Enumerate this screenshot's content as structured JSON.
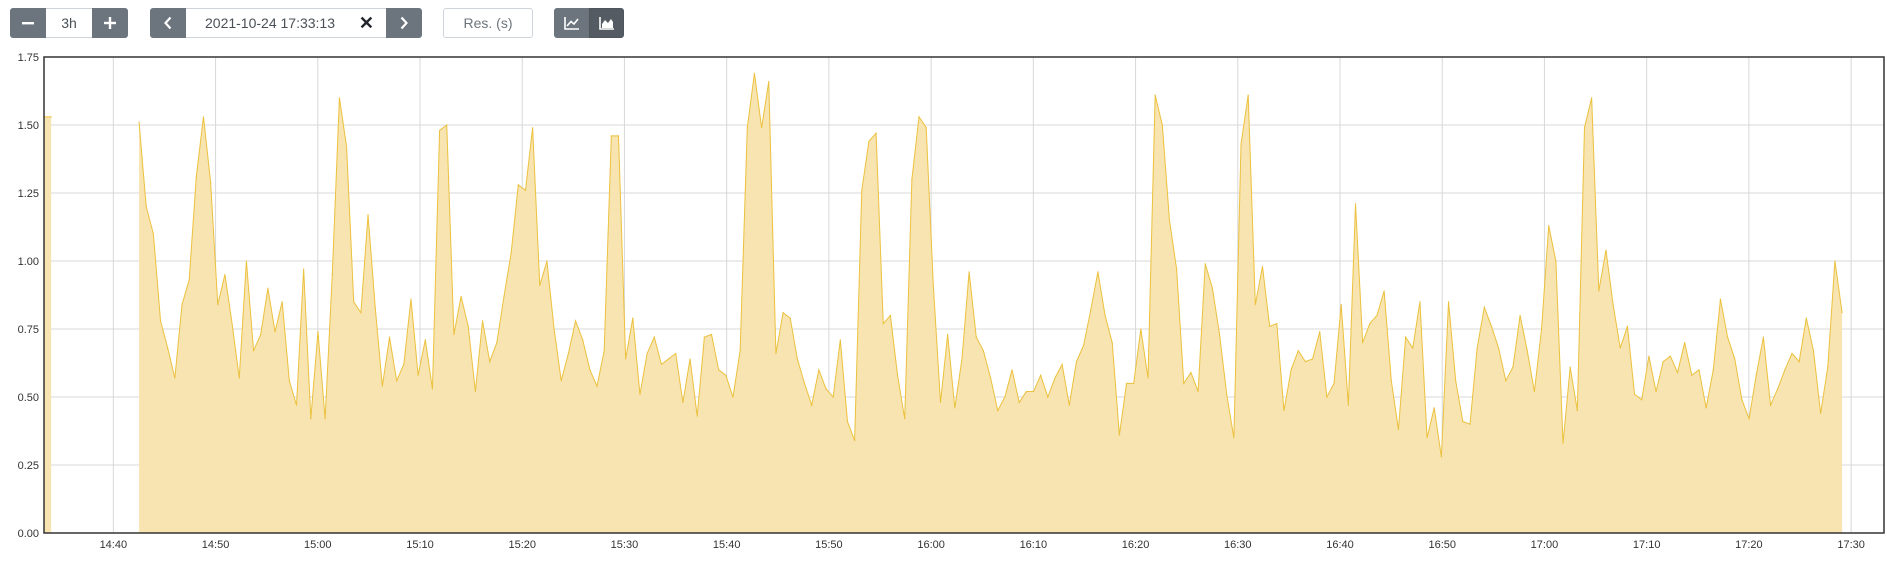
{
  "controls": {
    "range": {
      "minus_icon": "minus-icon",
      "value": "3h",
      "plus_icon": "plus-icon"
    },
    "end_time": {
      "prev_icon": "chevron-left-icon",
      "value": "2021-10-24 17:33:13",
      "clear_label": "✕",
      "next_icon": "chevron-right-icon"
    },
    "resolution": {
      "placeholder": "Res. (s)"
    },
    "chart_mode": {
      "lines_icon": "line-chart-icon",
      "stacked_icon": "area-chart-icon",
      "active": "stacked"
    }
  },
  "colors": {
    "series_fill": "#f7e4b0",
    "series_stroke": "#ebc13e",
    "grid": "#d8d8d8",
    "frame": "#333333"
  },
  "chart_data": {
    "type": "area",
    "stacked": true,
    "grid": true,
    "x_start": "14:33:13",
    "x_end": "17:33:13",
    "step_seconds": 42,
    "x_ticks": [
      "14:40",
      "14:50",
      "15:00",
      "15:10",
      "15:20",
      "15:30",
      "15:40",
      "15:50",
      "16:00",
      "16:10",
      "16:20",
      "16:30",
      "16:40",
      "16:50",
      "17:00",
      "17:10",
      "17:20",
      "17:30"
    ],
    "y_ticks": [
      "0.00",
      "0.25",
      "0.50",
      "0.75",
      "1.00",
      "1.25",
      "1.50",
      "1.75"
    ],
    "ylim": [
      0,
      1.75
    ],
    "series": [
      {
        "segments": [
          {
            "start": "14:33:13",
            "values": [
              1.53,
              1.53
            ]
          },
          {
            "start": "14:42:31",
            "values": [
              1.51,
              1.2,
              1.1,
              0.78,
              0.68,
              0.57,
              0.84,
              0.93,
              1.31,
              1.53,
              1.29,
              0.84,
              0.95,
              0.77,
              0.57,
              1.0,
              0.67,
              0.73,
              0.9,
              0.74,
              0.85,
              0.56,
              0.47,
              0.97,
              0.42,
              0.74,
              0.42,
              0.95,
              1.6,
              1.42,
              0.85,
              0.81,
              1.17,
              0.83,
              0.54,
              0.72,
              0.56,
              0.62,
              0.86,
              0.58,
              0.71,
              0.53,
              1.48,
              1.5,
              0.73,
              0.87,
              0.76,
              0.52,
              0.78,
              0.63,
              0.7,
              0.87,
              1.03,
              1.28,
              1.26,
              1.49,
              0.91,
              1.0,
              0.75,
              0.56,
              0.66,
              0.78,
              0.71,
              0.6,
              0.54,
              0.67,
              1.46,
              1.46,
              0.64,
              0.79,
              0.51,
              0.66,
              0.72,
              0.62,
              0.64,
              0.66,
              0.48,
              0.64,
              0.43,
              0.72,
              0.73,
              0.6,
              0.58,
              0.5,
              0.67,
              1.49,
              1.69,
              1.49,
              1.66,
              0.66,
              0.81,
              0.79,
              0.64,
              0.55,
              0.47,
              0.6,
              0.53,
              0.5,
              0.71,
              0.41,
              0.34,
              1.26,
              1.44,
              1.47,
              0.77,
              0.8,
              0.58,
              0.42,
              1.3,
              1.53,
              1.49,
              0.91,
              0.48,
              0.73,
              0.46,
              0.64,
              0.96,
              0.72,
              0.67,
              0.57,
              0.45,
              0.5,
              0.6,
              0.48,
              0.52,
              0.52,
              0.58,
              0.5,
              0.57,
              0.62,
              0.47,
              0.63,
              0.69,
              0.82,
              0.96,
              0.8,
              0.7,
              0.36,
              0.55,
              0.55,
              0.75,
              0.57,
              1.61,
              1.5,
              1.15,
              0.97,
              0.55,
              0.59,
              0.52,
              0.99,
              0.9,
              0.73,
              0.51,
              0.35,
              1.43,
              1.61,
              0.84,
              0.98,
              0.76,
              0.77,
              0.45,
              0.6,
              0.67,
              0.63,
              0.64,
              0.74,
              0.5,
              0.55,
              0.84,
              0.47,
              1.21,
              0.7,
              0.77,
              0.8,
              0.89,
              0.56,
              0.38,
              0.72,
              0.68,
              0.85,
              0.35,
              0.46,
              0.28,
              0.85,
              0.56,
              0.41,
              0.4,
              0.68,
              0.83,
              0.76,
              0.68,
              0.56,
              0.61,
              0.8,
              0.67,
              0.52,
              0.75,
              1.13,
              1.0,
              0.33,
              0.61,
              0.45,
              1.49,
              1.6,
              0.89,
              1.04,
              0.84,
              0.68,
              0.76,
              0.51,
              0.49,
              0.65,
              0.52,
              0.63,
              0.65,
              0.59,
              0.7,
              0.58,
              0.6,
              0.46,
              0.6,
              0.86,
              0.72,
              0.64,
              0.49,
              0.42,
              0.58,
              0.72,
              0.47,
              0.53,
              0.6,
              0.66,
              0.63,
              0.79,
              0.67,
              0.44,
              0.61,
              1.0,
              0.81
            ]
          }
        ]
      }
    ]
  }
}
